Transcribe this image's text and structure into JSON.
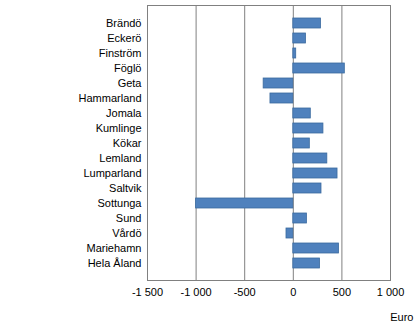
{
  "chart_data": {
    "type": "bar",
    "orientation": "horizontal",
    "categories": [
      "Brändö",
      "Eckerö",
      "Finström",
      "Föglö",
      "Geta",
      "Hammarland",
      "Jomala",
      "Kumlinge",
      "Kökar",
      "Lemland",
      "Lumparland",
      "Saltvik",
      "Sottunga",
      "Sund",
      "Vårdö",
      "Mariehamn",
      "Hela Åland"
    ],
    "values": [
      285,
      130,
      30,
      530,
      -305,
      -235,
      180,
      310,
      170,
      350,
      455,
      290,
      -1000,
      140,
      -70,
      470,
      275
    ],
    "color": "#4f81bd",
    "xlabel": "Euro",
    "xlim": [
      -1500,
      1000
    ],
    "xticks": [
      {
        "value": -1500,
        "label": "-1 500"
      },
      {
        "value": -1000,
        "label": "-1 000"
      },
      -500,
      0,
      500,
      {
        "value": 1000,
        "label": "1 000"
      }
    ],
    "grid": true
  }
}
